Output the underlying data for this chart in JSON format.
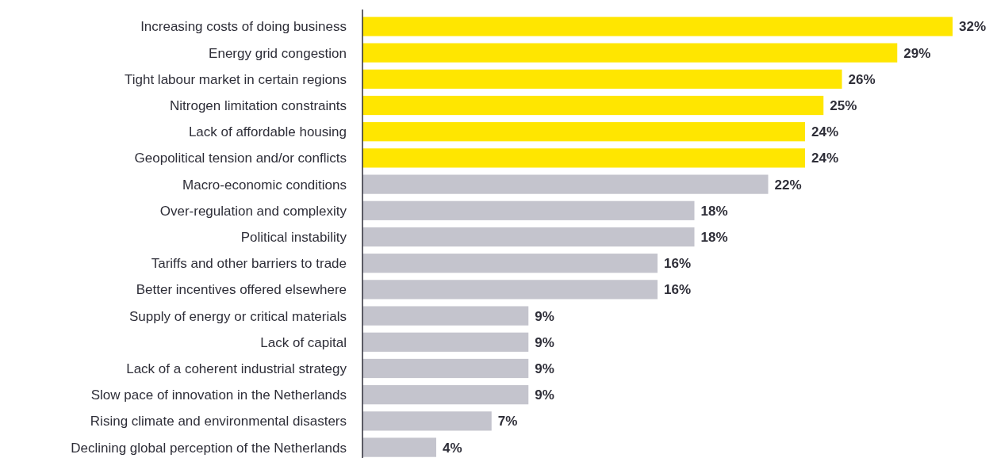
{
  "chart_data": {
    "type": "bar",
    "orientation": "horizontal",
    "categories": [
      "Increasing costs of doing business",
      "Energy grid congestion",
      "Tight labour market in certain regions",
      "Nitrogen limitation constraints",
      "Lack of affordable housing",
      "Geopolitical tension and/or conflicts",
      "Macro-economic conditions",
      "Over-regulation and complexity",
      "Political instability",
      "Tariffs and other barriers to trade",
      "Better incentives offered elsewhere",
      "Supply of energy or critical materials",
      "Lack of capital",
      "Lack of a coherent industrial strategy",
      "Slow pace of innovation in the Netherlands",
      "Rising climate and environmental disasters",
      "Declining global perception of the Netherlands"
    ],
    "values": [
      32,
      29,
      26,
      25,
      24,
      24,
      22,
      18,
      18,
      16,
      16,
      9,
      9,
      9,
      9,
      7,
      4
    ],
    "value_labels": [
      "32%",
      "29%",
      "26%",
      "25%",
      "24%",
      "24%",
      "22%",
      "18%",
      "18%",
      "16%",
      "16%",
      "9%",
      "9%",
      "9%",
      "9%",
      "7%",
      "4%"
    ],
    "colors": [
      "#ffe600",
      "#ffe600",
      "#ffe600",
      "#ffe600",
      "#ffe600",
      "#ffe600",
      "#c4c4cd",
      "#c4c4cd",
      "#c4c4cd",
      "#c4c4cd",
      "#c4c4cd",
      "#c4c4cd",
      "#c4c4cd",
      "#c4c4cd",
      "#c4c4cd",
      "#c4c4cd",
      "#c4c4cd"
    ]
  }
}
